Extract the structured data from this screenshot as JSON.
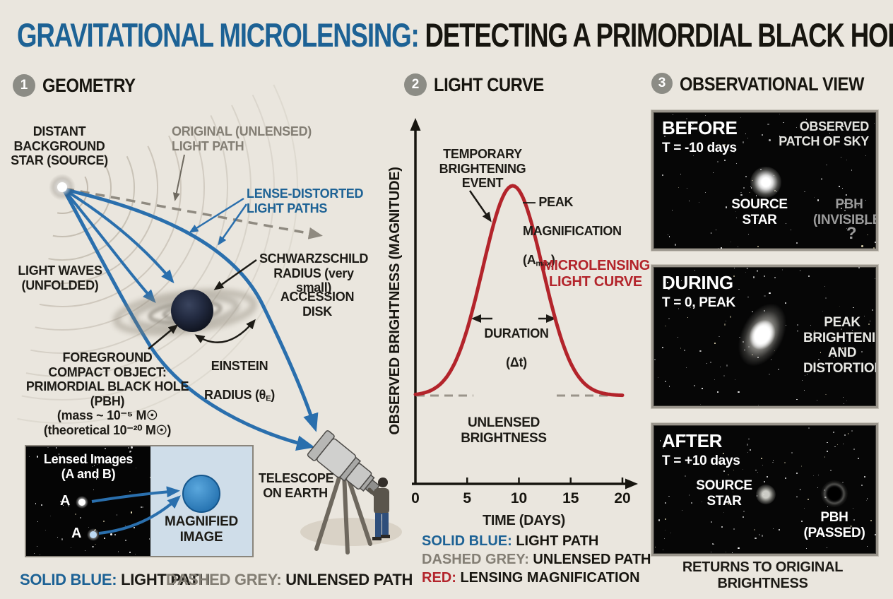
{
  "title": {
    "blue": "GRAVITATIONAL MICROLENSING:",
    "black": " DETECTING A PRIMORDIAL BLACK HOLE"
  },
  "sections": {
    "geometry": {
      "num": "1",
      "heading": "GEOMETRY"
    },
    "light_curve": {
      "num": "2",
      "heading": "LIGHT CURVE"
    },
    "observational": {
      "num": "3",
      "heading": "OBSERVATIONAL VIEW"
    }
  },
  "geometry": {
    "distant_star": "DISTANT\nBACKGROUND\nSTAR (SOURCE)",
    "original_path": "ORIGINAL (UNLENSED)\nLIGHT PATH",
    "lens_distorted": "LENSE-DISTORTED\nLIGHT PATHS",
    "light_waves": "LIGHT WAVES\n(UNFOLDED)",
    "schwarzschild": "SCHWARZSCHILD\nRADIUS (very small)",
    "accretion_disk": "ACCESSION\nDISK",
    "einstein": {
      "l1": "EINSTEIN",
      "l2a": "RADIUS (θ",
      "sub": "E",
      "l2b": ")"
    },
    "foreground": "FOREGROUND\nCOMPACT OBJECT:\nPRIMORDIAL BLACK HOLE (PBH)\n(mass ~ 10⁻⁵ M☉\n(theoretical 10⁻²⁰ M☉)",
    "telescope": "TELESCOPE\nON EARTH",
    "inset": {
      "title": "Lensed Images\n(A and B)",
      "star_a": "A",
      "star_b": "A",
      "magnified": "MAGNIFIED\nIMAGE"
    },
    "legend": {
      "blue_key": "SOLID BLUE:",
      "blue_val": " LIGHT PATH",
      "grey_key": "DASHED GREY:",
      "grey_val": " UNLENSED PATH"
    }
  },
  "chart": {
    "ylabel": "OBSERVED BRIGHTNESS (MAGNITUDE)",
    "xlabel": "TIME (DAYS)",
    "temporary": "TEMPORARY\nBRIGHTENING\nEVENT",
    "peak": {
      "l1": "— PEAK",
      "l2": "MAGNIFICATION",
      "l3a": "(A",
      "sub": "max",
      "l3b": ")"
    },
    "curve_label": "MICROLENSING\nLIGHT CURVE",
    "duration": {
      "l1": "DURATION",
      "l2": "(Δt)"
    },
    "unlensed": "UNLENSED\nBRIGHTNESS",
    "legend": [
      {
        "key": "SOLID BLUE:",
        "val": " LIGHT PATH",
        "color": "#1d6295"
      },
      {
        "key": "DASHED GREY:",
        "val": " UNLENSED PATH",
        "color": "#9a948a"
      },
      {
        "key": "RED:",
        "val": " LENSING MAGNIFICATION",
        "color": "#b3242b"
      }
    ]
  },
  "chart_data": {
    "type": "line",
    "title": "LIGHT CURVE",
    "xlabel": "TIME (DAYS)",
    "ylabel": "OBSERVED BRIGHTNESS (MAGNITUDE)",
    "x_ticks": [
      0,
      5,
      10,
      15,
      20
    ],
    "xlim": [
      0,
      22
    ],
    "grid": false,
    "baseline_label": "UNLENSED BRIGHTNESS",
    "series": [
      {
        "name": "MICROLENSING LIGHT CURVE",
        "model": "gaussian",
        "baseline": 0,
        "amplitude": 1,
        "peak_day": 9.4,
        "sigma_days": 2.9,
        "duration_marker_days": [
          5.3,
          13.5
        ],
        "color": "#b3242b"
      }
    ],
    "annotations": [
      "TEMPORARY BRIGHTENING EVENT",
      "PEAK MAGNIFICATION (Amax)",
      "DURATION (Δt)",
      "UNLENSED BRIGHTNESS",
      "MICROLENSING LIGHT CURVE"
    ]
  },
  "observational": {
    "before": {
      "title": "BEFORE",
      "time": "T = -10 days",
      "corner": "OBSERVED\nPATCH OF SKY",
      "source": "SOURCE\nSTAR",
      "pbh": "PBH\n(INVISIBLE)",
      "q": "?"
    },
    "during": {
      "title": "DURING",
      "time": "T = 0, PEAK",
      "label": "PEAK\nBRIGHTENING\nAND\nDISTORTION"
    },
    "after": {
      "title": "AFTER",
      "time": "T = +10 days",
      "source": "SOURCE\nSTAR",
      "pbh": "PBH\n(PASSED)"
    },
    "footer": "RETURNS TO ORIGINAL BRIGHTNESS"
  },
  "colors": {
    "background": "#eae6de",
    "accent_blue": "#1d6295",
    "arrow_blue": "#2a6fad",
    "curve_red": "#b3242b",
    "dashed_grey": "#9a948a",
    "badge_grey": "#8c8c85"
  }
}
